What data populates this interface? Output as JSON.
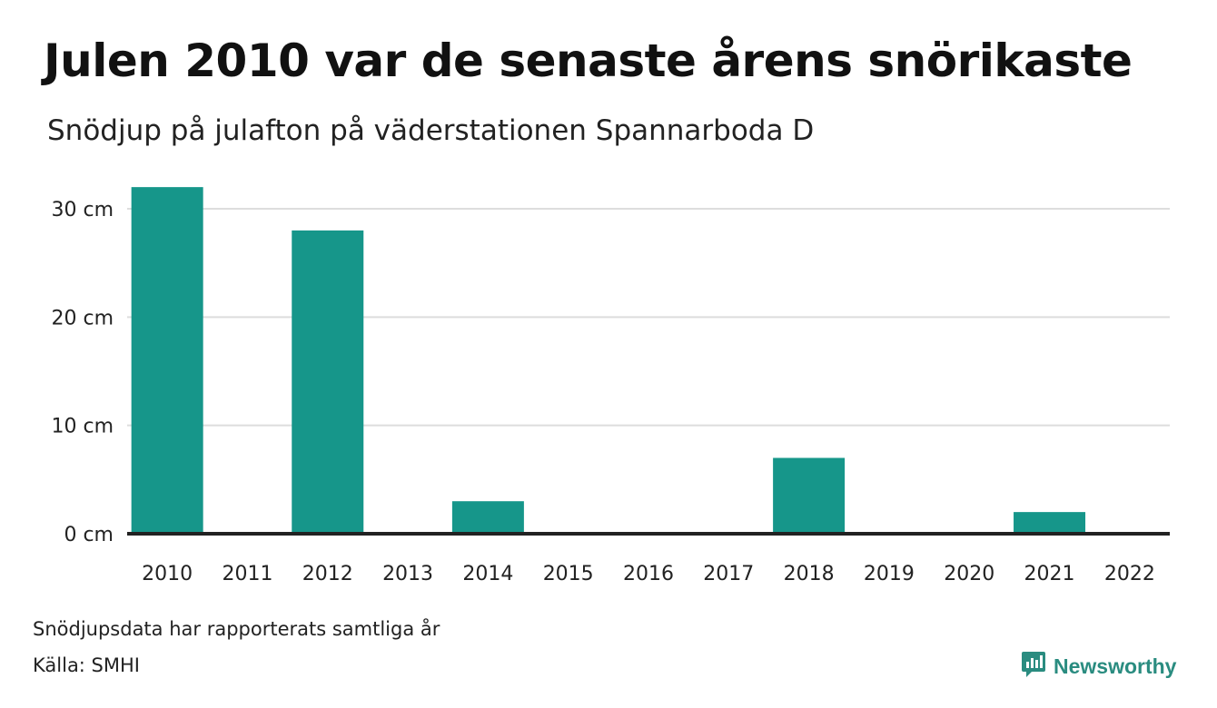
{
  "title": "Julen 2010 var de senaste årens snörikaste",
  "subtitle": "Snödjup på julafton på väderstationen Spannarboda D",
  "footer": {
    "note": "Snödjupsdata har rapporterats samtliga år",
    "source": "Källa: SMHI",
    "brand": "Newsworthy"
  },
  "colors": {
    "bar": "#16968a",
    "grid": "#dddddd",
    "baseline": "#222222",
    "brand": "#2a8c80"
  },
  "icons": {
    "brand_logo": "newsworthy-logo-icon"
  },
  "chart_data": {
    "type": "bar",
    "title": "Julen 2010 var de senaste årens snörikaste",
    "subtitle": "Snödjup på julafton på väderstationen Spannarboda D",
    "xlabel": "",
    "ylabel": "",
    "categories": [
      "2010",
      "2011",
      "2012",
      "2013",
      "2014",
      "2015",
      "2016",
      "2017",
      "2018",
      "2019",
      "2020",
      "2021",
      "2022"
    ],
    "values": [
      32,
      0,
      28,
      0,
      3,
      0,
      0,
      0,
      7,
      0,
      0,
      2,
      0
    ],
    "unit": "cm",
    "ylim": [
      0,
      30
    ],
    "yticks": [
      0,
      10,
      20,
      30
    ],
    "ytick_labels": [
      "0 cm",
      "10 cm",
      "20 cm",
      "30 cm"
    ],
    "grid": true,
    "legend": "none"
  }
}
